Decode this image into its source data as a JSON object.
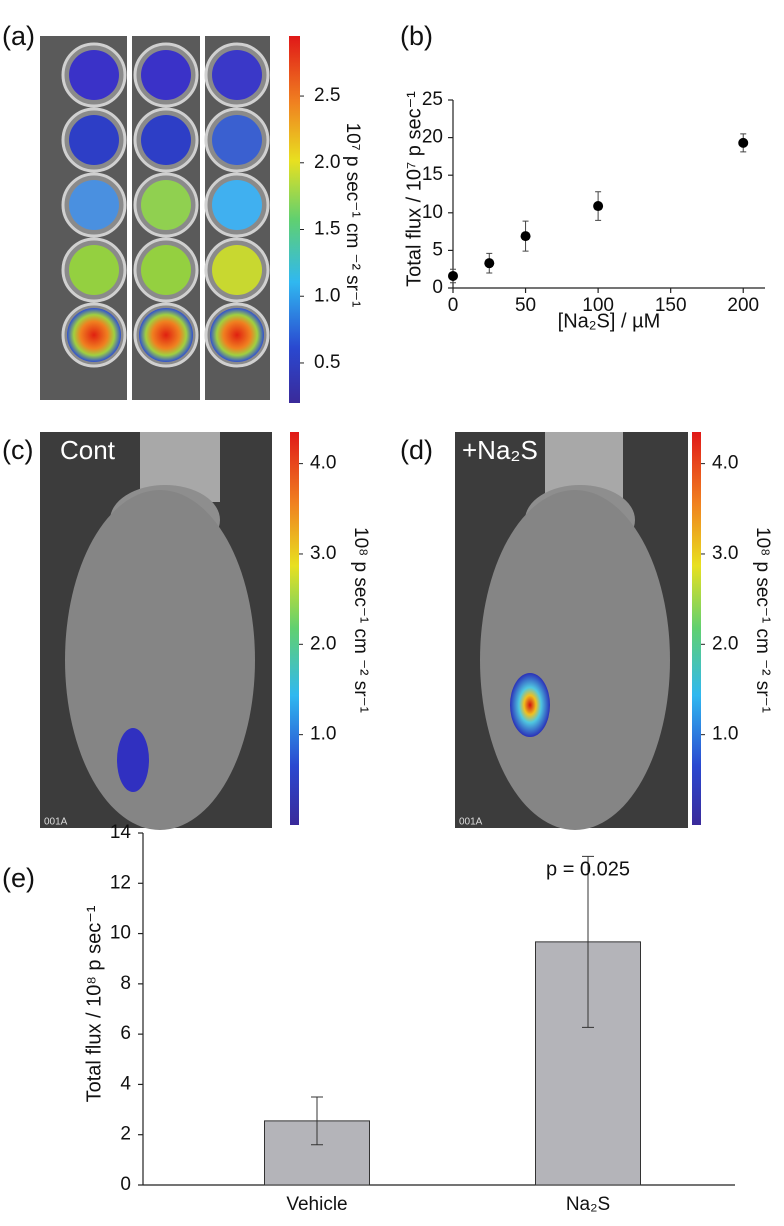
{
  "chart_data": [
    {
      "type": "colorbar",
      "panel_label": "(a)",
      "label": "10⁷ p sec⁻¹ cm ⁻² sr⁻¹",
      "ylim": [
        0.2,
        2.95
      ],
      "yticks": [
        0.5,
        {
          "value": 1,
          "label": "1.0"
        },
        1.5,
        {
          "value": 2,
          "label": "2.0"
        },
        2.5
      ]
    },
    {
      "type": "scatter",
      "panel_label": "(b)",
      "xlabel": "[Na₂S] / µM",
      "ylabel": "Total flux / 10⁷ p sec⁻¹",
      "x": [
        0,
        25,
        50,
        100,
        200
      ],
      "values": [
        1.6,
        3.3,
        6.9,
        10.9,
        19.3
      ],
      "errors": [
        0.9,
        1.3,
        2.0,
        1.9,
        1.2
      ],
      "color": "#000000",
      "xlim": [
        0,
        215
      ],
      "ylim": [
        0,
        25
      ],
      "xticks": [
        0,
        50,
        100,
        150,
        200
      ],
      "yticks": [
        0,
        5,
        10,
        15,
        20,
        25
      ]
    },
    {
      "type": "colorbar",
      "panel_label": "(c)",
      "image_label": "Cont",
      "image_tag": "001A",
      "label": "10⁸ p sec⁻¹ cm ⁻² sr⁻¹",
      "ylim": [
        0,
        4.35
      ],
      "yticks": [
        {
          "value": 1,
          "label": "1.0"
        },
        {
          "value": 2,
          "label": "2.0"
        },
        {
          "value": 3,
          "label": "3.0"
        },
        {
          "value": 4,
          "label": "4.0"
        }
      ]
    },
    {
      "type": "colorbar",
      "panel_label": "(d)",
      "image_label": "+Na₂S",
      "image_tag": "001A",
      "label": "10⁸ p sec⁻¹ cm ⁻² sr⁻¹",
      "ylim": [
        0,
        4.35
      ],
      "yticks": [
        {
          "value": 1,
          "label": "1.0"
        },
        {
          "value": 2,
          "label": "2.0"
        },
        {
          "value": 3,
          "label": "3.0"
        },
        {
          "value": 4,
          "label": "4.0"
        }
      ]
    },
    {
      "type": "bar",
      "panel_label": "(e)",
      "ylabel": "Total flux  / 10⁸ p sec⁻¹",
      "annotation": "p = 0.025",
      "categories": [
        "Vehicle",
        "Na₂S"
      ],
      "values": [
        2.55,
        9.67
      ],
      "errors": [
        0.95,
        3.4
      ],
      "color": "#b4b4b9",
      "ylim": [
        0,
        14
      ],
      "yticks": [
        0,
        2,
        4,
        6,
        8,
        10,
        12,
        14
      ]
    }
  ]
}
